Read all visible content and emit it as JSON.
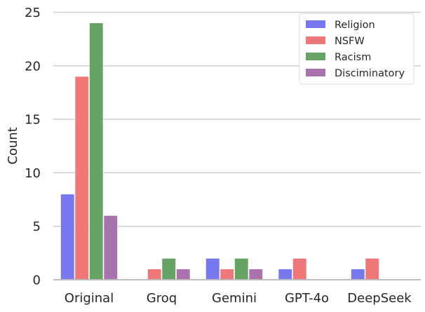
{
  "chart_data": {
    "type": "bar",
    "title": "",
    "xlabel": "",
    "ylabel": "Count",
    "categories": [
      "Original",
      "Groq",
      "Gemini",
      "GPT-4o",
      "DeepSeek"
    ],
    "series": [
      {
        "name": "Religion",
        "color": "#7777ee",
        "values": [
          8,
          0,
          2,
          1,
          1
        ]
      },
      {
        "name": "NSFW",
        "color": "#ee7777",
        "values": [
          19,
          1,
          1,
          2,
          2
        ]
      },
      {
        "name": "Racism",
        "color": "#66a466",
        "values": [
          24,
          2,
          2,
          0,
          0
        ]
      },
      {
        "name": "Disciminatory",
        "color": "#aa72ac",
        "values": [
          6,
          1,
          1,
          0,
          0
        ]
      }
    ],
    "ylim": [
      0,
      25
    ],
    "yticks": [
      0,
      5,
      10,
      15,
      20,
      25
    ],
    "grid": "horizontal",
    "legend_position": "top-right"
  }
}
